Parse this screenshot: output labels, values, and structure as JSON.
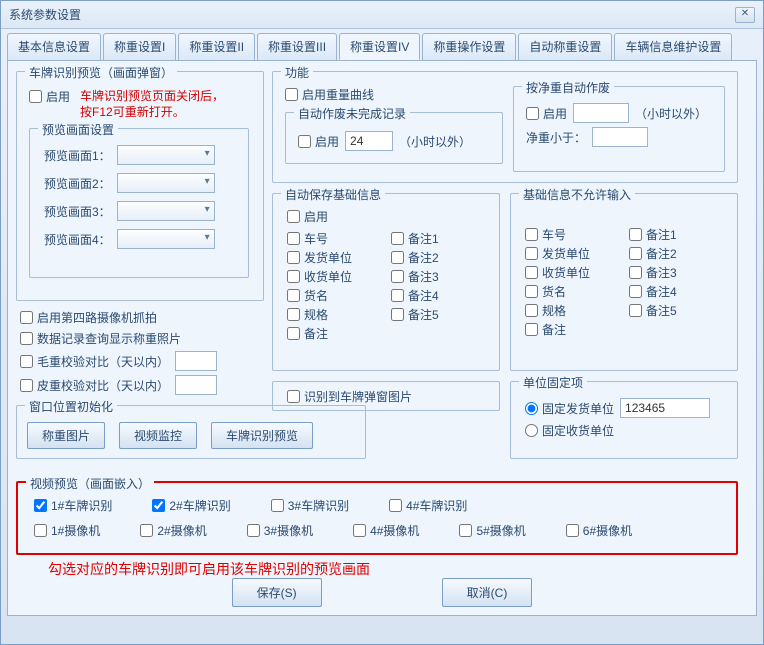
{
  "window_title": "系统参数设置",
  "tabs": [
    "基本信息设置",
    "称重设置I",
    "称重设置II",
    "称重设置III",
    "称重设置IV",
    "称重操作设置",
    "自动称重设置",
    "车辆信息维护设置"
  ],
  "active_tab": 4,
  "lp_preview": {
    "title": "车牌识别预览（画面弹窗）",
    "enable": "启用",
    "warning1": "车牌识别预览页面关闭后，",
    "warning2": "按F12可重新打开。",
    "screens_title": "预览画面设置",
    "screens": [
      "预览画面1：",
      "预览画面2：",
      "预览画面3：",
      "预览画面4："
    ]
  },
  "extra_checks": {
    "c1": "启用第四路摄像机抓拍",
    "c2": "数据记录查询显示称重照片",
    "c3": "毛重校验对比（天以内）",
    "c4": "皮重校验对比（天以内）"
  },
  "win_init": {
    "title": "窗口位置初始化",
    "b1": "称重图片",
    "b2": "视频监控",
    "b3": "车牌识别预览"
  },
  "func": {
    "title": "功能",
    "curve": "启用重量曲线",
    "auto_void_title": "自动作废未完成记录",
    "enable": "启用",
    "hours": "24",
    "hours_unit": "（小时以外）",
    "net_title": "按净重自动作废",
    "net_enable": "启用",
    "net_unit": "（小时以外）",
    "net_less": "净重小于："
  },
  "auto_save": {
    "title": "自动保存基础信息",
    "enable": "启用",
    "items": [
      "车号",
      "发货单位",
      "收货单位",
      "货名",
      "规格",
      "备注"
    ],
    "notes": [
      "备注1",
      "备注2",
      "备注3",
      "备注4",
      "备注5"
    ]
  },
  "no_input": {
    "title": "基础信息不允许输入",
    "items": [
      "车号",
      "发货单位",
      "收货单位",
      "货名",
      "规格",
      "备注"
    ],
    "notes": [
      "备注1",
      "备注2",
      "备注3",
      "备注4",
      "备注5"
    ]
  },
  "popup_img": "识别到车牌弹窗图片",
  "unit_fixed": {
    "title": "单位固定项",
    "r1": "固定发货单位",
    "r2": "固定收货单位",
    "value": "123465"
  },
  "video_preview": {
    "title": "视频预览（画面嵌入）",
    "plates": [
      "1#车牌识别",
      "2#车牌识别",
      "3#车牌识别",
      "4#车牌识别"
    ],
    "plates_checked": [
      true,
      true,
      false,
      false
    ],
    "cams": [
      "1#摄像机",
      "2#摄像机",
      "3#摄像机",
      "4#摄像机",
      "5#摄像机",
      "6#摄像机"
    ]
  },
  "hint_text": "勾选对应的车牌识别即可启用该车牌识别的预览画面",
  "buttons": {
    "save": "保存(S)",
    "cancel": "取消(C)"
  },
  "colors": {
    "border": "#9ab3d0",
    "red": "#e00000",
    "text": "#2b4a6f"
  }
}
